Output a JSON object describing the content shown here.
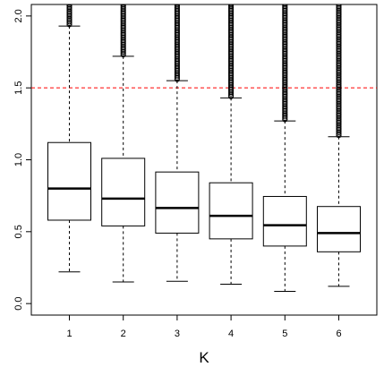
{
  "chart_data": {
    "type": "boxplot",
    "title": "",
    "xlabel": "K",
    "ylabel": "",
    "categories": [
      "1",
      "2",
      "3",
      "4",
      "5",
      "6"
    ],
    "ylim": [
      -0.08,
      2.08
    ],
    "yticks": [
      0.0,
      0.5,
      1.0,
      1.5,
      2.0
    ],
    "ytick_labels": [
      "0.0",
      "0.5",
      "1.0",
      "1.5",
      "2.0"
    ],
    "boxes": [
      {
        "category": "1",
        "whisker_low": 0.22,
        "q1": 0.58,
        "median": 0.8,
        "q3": 1.12,
        "whisker_high": 1.93,
        "outliers_from": 1.94
      },
      {
        "category": "2",
        "whisker_low": 0.15,
        "q1": 0.54,
        "median": 0.73,
        "q3": 1.01,
        "whisker_high": 1.72,
        "outliers_from": 1.73
      },
      {
        "category": "3",
        "whisker_low": 0.155,
        "q1": 0.49,
        "median": 0.665,
        "q3": 0.915,
        "whisker_high": 1.55,
        "outliers_from": 1.56
      },
      {
        "category": "4",
        "whisker_low": 0.135,
        "q1": 0.45,
        "median": 0.61,
        "q3": 0.84,
        "whisker_high": 1.43,
        "outliers_from": 1.44
      },
      {
        "category": "5",
        "whisker_low": 0.085,
        "q1": 0.4,
        "median": 0.545,
        "q3": 0.745,
        "whisker_high": 1.27,
        "outliers_from": 1.28
      },
      {
        "category": "6",
        "whisker_low": 0.12,
        "q1": 0.36,
        "median": 0.49,
        "q3": 0.675,
        "whisker_high": 1.16,
        "outliers_from": 1.17
      }
    ],
    "reference_line": {
      "y": 1.5,
      "color": "#ff0000",
      "style": "dashed"
    },
    "colors": {
      "box": "#000000",
      "median": "#000000",
      "outliers": "#000000"
    },
    "grid": false,
    "legend": "none"
  }
}
